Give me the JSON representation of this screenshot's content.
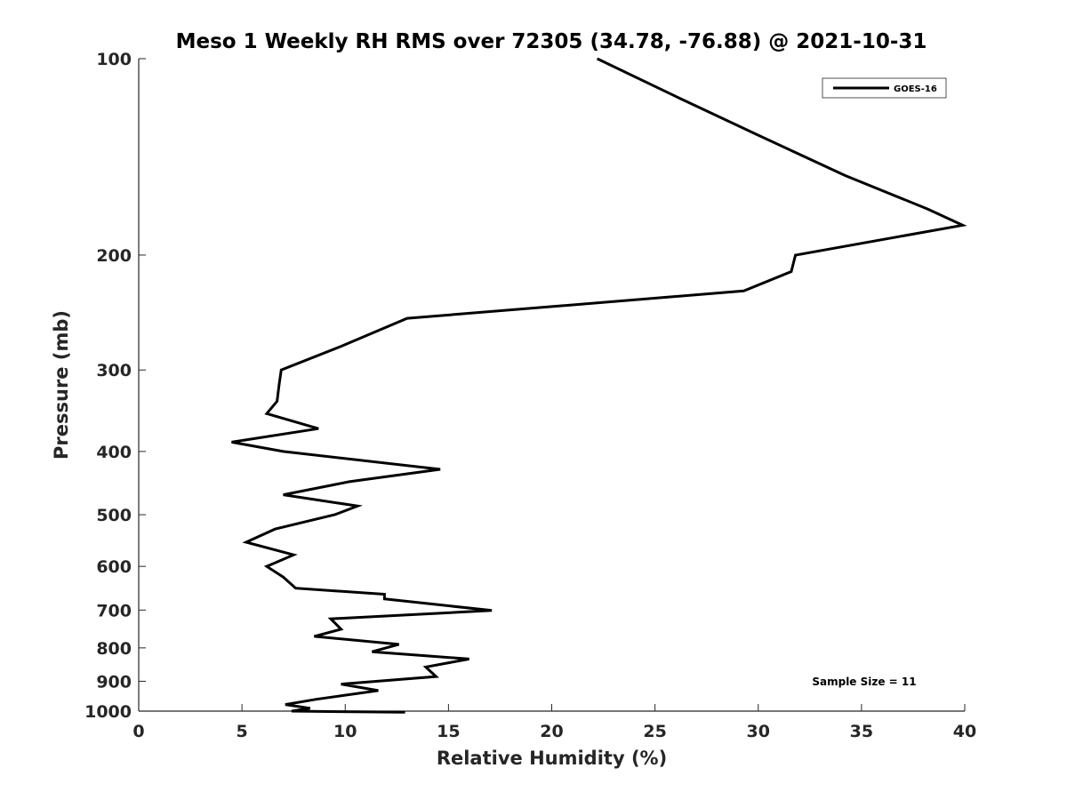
{
  "chart_data": {
    "type": "line",
    "title": "Meso 1 Weekly RH RMS over 72305 (34.78, -76.88) @ 2021-10-31",
    "xlabel": "Relative Humidity (%)",
    "ylabel": "Pressure (mb)",
    "xlim": [
      0,
      40
    ],
    "ylim": [
      1000,
      100
    ],
    "y_scale": "log",
    "y_reversed": true,
    "grid": false,
    "x_ticks": [
      "0",
      "5",
      "10",
      "15",
      "20",
      "25",
      "30",
      "35",
      "40"
    ],
    "y_ticks": [
      "100",
      "200",
      "300",
      "400",
      "500",
      "600",
      "700",
      "800",
      "900",
      "1000"
    ],
    "legend": {
      "placement": "top-right",
      "entries": [
        "GOES-16"
      ]
    },
    "annotation": "Sample Size = 11",
    "series": [
      {
        "name": "GOES-16",
        "color": "#000000",
        "x": [
          22.2,
          26.2,
          30.0,
          34.2,
          38.2,
          39.9,
          31.8,
          31.6,
          29.3,
          13.0,
          9.8,
          6.9,
          6.8,
          6.7,
          6.2,
          8.7,
          4.5,
          7.0,
          14.6,
          10.2,
          7.0,
          10.6,
          9.5,
          6.6,
          5.2,
          7.5,
          6.2,
          7.0,
          7.6,
          11.9,
          11.9,
          17.1,
          9.3,
          9.8,
          8.5,
          12.6,
          11.3,
          16.0,
          13.9,
          14.4,
          9.8,
          11.6,
          8.6,
          7.1,
          8.3,
          7.4,
          9.8,
          12.9
        ],
        "y": [
          100,
          115,
          131,
          151,
          170,
          180,
          200,
          212,
          227,
          250,
          276,
          300,
          316,
          335,
          350,
          369,
          387,
          400,
          426,
          445,
          466,
          485,
          500,
          526,
          551,
          576,
          600,
          623,
          648,
          662,
          673,
          701,
          722,
          749,
          768,
          790,
          811,
          832,
          856,
          885,
          909,
          930,
          959,
          977,
          990,
          1000,
          1002,
          1004
        ]
      }
    ]
  }
}
